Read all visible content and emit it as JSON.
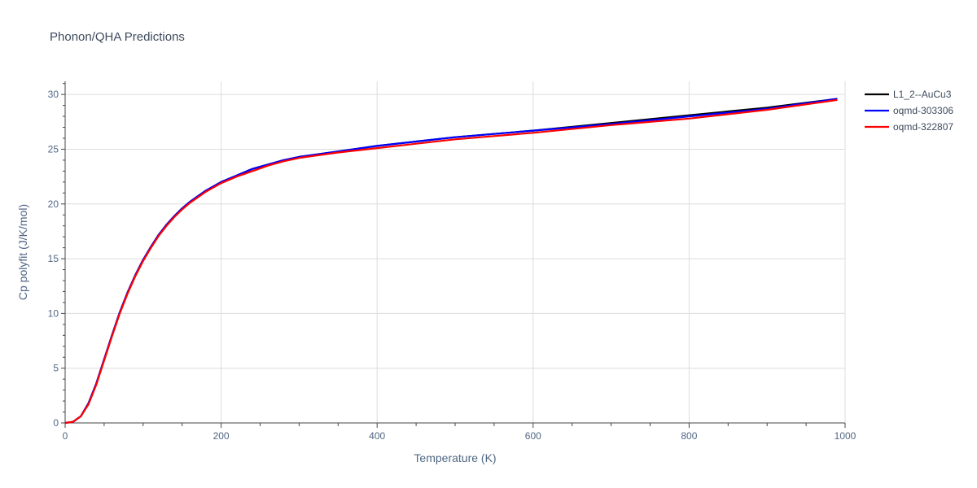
{
  "chart_data": {
    "type": "line",
    "title": "Phonon/QHA Predictions",
    "xlabel": "Temperature (K)",
    "ylabel": "Cp polyfit (J/K/mol)",
    "xlim": [
      0,
      1000
    ],
    "ylim": [
      0,
      31.2
    ],
    "x_ticks": [
      0,
      200,
      400,
      600,
      800,
      1000
    ],
    "y_ticks": [
      0,
      5,
      10,
      15,
      20,
      25,
      30
    ],
    "grid": true,
    "legend_position": "top-right",
    "series": [
      {
        "name": "L1_2--AuCu3",
        "color": "#000000",
        "x": [
          0,
          10,
          20,
          30,
          40,
          50,
          60,
          70,
          80,
          90,
          100,
          110,
          120,
          130,
          140,
          150,
          160,
          170,
          180,
          190,
          200,
          220,
          240,
          260,
          280,
          300,
          350,
          400,
          450,
          500,
          600,
          700,
          800,
          900,
          990
        ],
        "y": [
          0,
          0.1,
          0.6,
          1.8,
          3.6,
          5.8,
          8.0,
          10.1,
          11.9,
          13.5,
          14.9,
          16.1,
          17.2,
          18.1,
          18.9,
          19.6,
          20.2,
          20.7,
          21.2,
          21.6,
          22.0,
          22.6,
          23.2,
          23.6,
          24.0,
          24.3,
          24.8,
          25.3,
          25.7,
          26.1,
          26.7,
          27.4,
          28.1,
          28.8,
          29.6
        ]
      },
      {
        "name": "oqmd-303306",
        "color": "#0000ff",
        "x": [
          0,
          10,
          20,
          30,
          40,
          50,
          60,
          70,
          80,
          90,
          100,
          110,
          120,
          130,
          140,
          150,
          160,
          170,
          180,
          190,
          200,
          220,
          240,
          260,
          280,
          300,
          350,
          400,
          450,
          500,
          600,
          700,
          800,
          900,
          990
        ],
        "y": [
          0,
          0.1,
          0.6,
          1.8,
          3.6,
          5.8,
          8.0,
          10.1,
          11.9,
          13.5,
          14.9,
          16.1,
          17.2,
          18.1,
          18.9,
          19.6,
          20.2,
          20.7,
          21.2,
          21.6,
          22.0,
          22.6,
          23.2,
          23.6,
          24.0,
          24.3,
          24.8,
          25.3,
          25.7,
          26.1,
          26.7,
          27.3,
          28.0,
          28.7,
          29.6
        ]
      },
      {
        "name": "oqmd-322807",
        "color": "#ff0000",
        "x": [
          0,
          10,
          20,
          30,
          40,
          50,
          60,
          70,
          80,
          90,
          100,
          110,
          120,
          130,
          140,
          150,
          160,
          170,
          180,
          190,
          200,
          220,
          240,
          260,
          280,
          300,
          350,
          400,
          450,
          500,
          600,
          700,
          800,
          900,
          990
        ],
        "y": [
          0,
          0.1,
          0.6,
          1.7,
          3.5,
          5.7,
          7.9,
          10.0,
          11.8,
          13.4,
          14.8,
          16.0,
          17.1,
          18.0,
          18.8,
          19.5,
          20.1,
          20.6,
          21.1,
          21.5,
          21.9,
          22.5,
          23.0,
          23.5,
          23.9,
          24.2,
          24.7,
          25.1,
          25.5,
          25.9,
          26.5,
          27.2,
          27.8,
          28.6,
          29.5
        ]
      }
    ]
  }
}
